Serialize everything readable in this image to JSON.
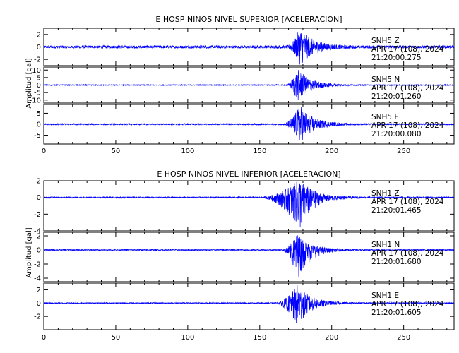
{
  "chart_data": [
    {
      "type": "line",
      "title": "E HOSP NINOS NIVEL SUPERIOR [ACELERACION]",
      "ylabel": "Amplitud [gal]",
      "xlabel": "",
      "xlim": [
        0,
        285
      ],
      "x_ticks": [
        "0",
        "50",
        "100",
        "150",
        "200",
        "250"
      ],
      "grid": false,
      "color": "#0000ff",
      "traces": [
        {
          "station": "SNH5",
          "component": "Z",
          "date": "APR 17 (108), 2024",
          "time": "21:20:00.275",
          "ylim": [
            -3,
            3
          ],
          "y_ticks": [
            "2",
            "0",
            "-2"
          ],
          "peak": 2.9,
          "noise": 0.22,
          "onset": 168,
          "peak_t": 178
        },
        {
          "station": "SNH5",
          "component": "N",
          "date": "APR 17 (108), 2024",
          "time": "21:20:01.260",
          "ylim": [
            -12,
            12
          ],
          "y_ticks": [
            "10",
            "5",
            "0",
            "-5",
            "-10"
          ],
          "peak": 11,
          "noise": 0.3,
          "onset": 168,
          "peak_t": 176
        },
        {
          "station": "SNH5",
          "component": "E",
          "date": "APR 17 (108), 2024",
          "time": "21:20:00.080",
          "ylim": [
            -9,
            9
          ],
          "y_ticks": [
            "5",
            "0",
            "-5"
          ],
          "peak": 8.5,
          "noise": 0.3,
          "onset": 165,
          "peak_t": 178
        }
      ]
    },
    {
      "type": "line",
      "title": "E HOSP NINOS NIVEL INFERIOR [ACELERACION]",
      "ylabel": "Amplitud [gal]",
      "xlabel": "",
      "xlim": [
        0,
        285
      ],
      "x_ticks": [
        "0",
        "50",
        "100",
        "150",
        "200",
        "250"
      ],
      "grid": false,
      "color": "#0000ff",
      "traces": [
        {
          "station": "SNH1",
          "component": "Z",
          "date": "APR 17 (108), 2024",
          "time": "21:20:01.465",
          "ylim": [
            -4,
            2
          ],
          "y_ticks": [
            "2",
            "0",
            "-2",
            "-4"
          ],
          "peak": 2.2,
          "peak_neg": 3.8,
          "noise": 0.08,
          "onset": 150,
          "peak_t": 178
        },
        {
          "station": "SNH1",
          "component": "N",
          "date": "APR 17 (108), 2024",
          "time": "21:20:01.680",
          "ylim": [
            -4.5,
            2.5
          ],
          "y_ticks": [
            "2",
            "0",
            "-2",
            "-4"
          ],
          "peak": 2.3,
          "peak_neg": 4.2,
          "noise": 0.08,
          "onset": 165,
          "peak_t": 176
        },
        {
          "station": "SNH1",
          "component": "E",
          "date": "APR 17 (108), 2024",
          "time": "21:20:01.605",
          "ylim": [
            -4,
            3
          ],
          "y_ticks": [
            "2",
            "0",
            "-2"
          ],
          "peak": 2.7,
          "peak_neg": 3.6,
          "noise": 0.08,
          "onset": 160,
          "peak_t": 176
        }
      ]
    }
  ]
}
